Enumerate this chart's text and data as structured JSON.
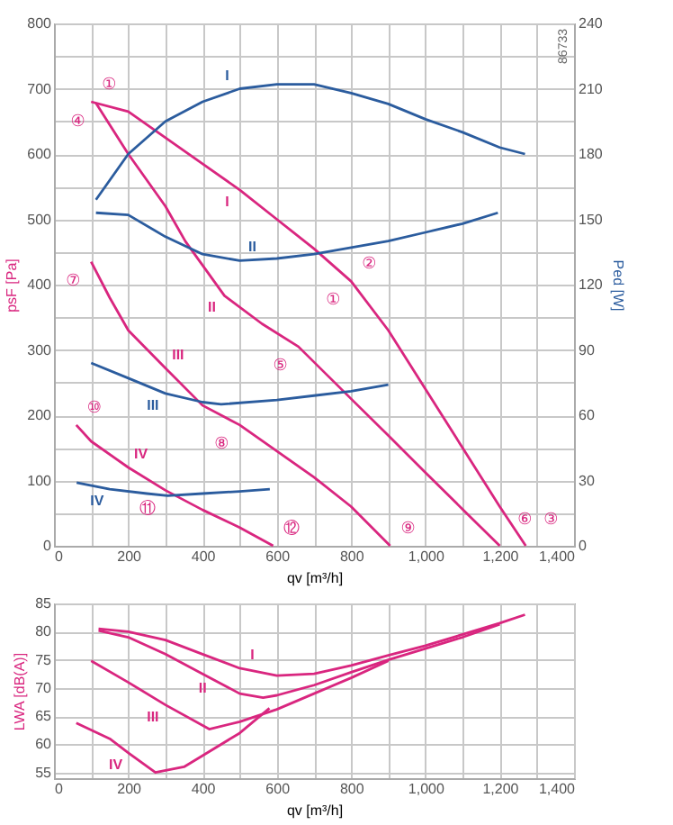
{
  "chart_data": [
    {
      "type": "line",
      "xlabel": "qv [m³/h]",
      "ylabel": "psF [Pa]",
      "y2label": "Ped [W]",
      "grid": true,
      "line_style": "solid",
      "marker": "none",
      "xlim": [
        0,
        1400
      ],
      "xticks": [
        0,
        {
          "value": 100,
          "label": null
        },
        200,
        {
          "value": 300,
          "label": null
        },
        400,
        {
          "value": 500,
          "label": null
        },
        600,
        {
          "value": 700,
          "label": null
        },
        800,
        {
          "value": 900,
          "label": null
        },
        {
          "value": 1000,
          "label": "1,000"
        },
        {
          "value": 1100,
          "label": null
        },
        {
          "value": 1200,
          "label": "1,200"
        },
        {
          "value": 1300,
          "label": null
        },
        {
          "value": 1400,
          "label": "1,400"
        }
      ],
      "ylim": [
        0,
        800
      ],
      "yticks": [
        0,
        {
          "value": 50,
          "label": null
        },
        100,
        {
          "value": 150,
          "label": null
        },
        200,
        {
          "value": 250,
          "label": null
        },
        300,
        {
          "value": 350,
          "label": null
        },
        400,
        {
          "value": 450,
          "label": null
        },
        500,
        {
          "value": 550,
          "label": null
        },
        600,
        {
          "value": 650,
          "label": null
        },
        700,
        {
          "value": 750,
          "label": null
        },
        800
      ],
      "y2lim": [
        0,
        240
      ],
      "y2ticks": [
        0,
        30,
        60,
        90,
        120,
        150,
        180,
        210,
        240
      ],
      "series": [
        {
          "name": "I",
          "color": "#d9267f",
          "x": [
            100,
            200,
            300,
            400,
            500,
            600,
            700,
            800,
            900,
            1000,
            1100,
            1200,
            1270
          ],
          "values": [
            680,
            665,
            625,
            585,
            545,
            500,
            455,
            405,
            330,
            240,
            150,
            60,
            0
          ]
        },
        {
          "name": "II",
          "color": "#d9267f",
          "x": [
            113,
            200,
            300,
            354,
            459,
            560,
            658,
            800,
            900,
            1000,
            1100,
            1200
          ],
          "values": [
            678,
            600,
            520,
            466,
            383,
            340,
            305,
            225,
            169,
            112,
            56,
            0
          ]
        },
        {
          "name": "III",
          "color": "#d9267f",
          "x": [
            100,
            150,
            200,
            300,
            400,
            500,
            600,
            700,
            800,
            905
          ],
          "values": [
            435,
            380,
            330,
            272,
            215,
            185,
            145,
            105,
            60,
            0
          ]
        },
        {
          "name": "IV",
          "color": "#d9267f",
          "x": [
            60,
            100,
            200,
            300,
            400,
            500,
            590
          ],
          "values": [
            185,
            160,
            120,
            85,
            55,
            28,
            0
          ]
        },
        {
          "name": "I",
          "color": "#2b5c9e",
          "axis": "y2",
          "x": [
            113,
            200,
            300,
            400,
            500,
            600,
            700,
            800,
            900,
            1000,
            1100,
            1200,
            1268
          ],
          "values": [
            159,
            180,
            195,
            204,
            210,
            212,
            212,
            208,
            203,
            196,
            190,
            183,
            180
          ]
        },
        {
          "name": "II",
          "color": "#2b5c9e",
          "axis": "y2",
          "x": [
            113,
            200,
            300,
            400,
            500,
            600,
            700,
            800,
            900,
            1000,
            1100,
            1195
          ],
          "values": [
            153,
            152,
            142,
            134,
            131,
            132,
            134,
            137,
            140,
            144,
            148,
            153
          ]
        },
        {
          "name": "III",
          "color": "#2b5c9e",
          "axis": "y2",
          "x": [
            100,
            200,
            300,
            400,
            450,
            600,
            700,
            800,
            900
          ],
          "values": [
            84,
            77,
            70,
            66,
            65,
            67,
            69,
            71,
            74
          ]
        },
        {
          "name": "IV",
          "color": "#2b5c9e",
          "axis": "y2",
          "x": [
            61,
            150,
            250,
            306,
            400,
            500,
            581
          ],
          "values": [
            29,
            26,
            24,
            23,
            24,
            25,
            26
          ]
        }
      ],
      "annotations": [
        "86733",
        {
          "text": "④",
          "x": 113,
          "y": 678
        },
        {
          "text": "①",
          "x": 100,
          "y": 680
        },
        {
          "text": "⑦",
          "x": 100,
          "y": 435
        },
        {
          "text": "⑩",
          "x": 60,
          "y": 185
        },
        {
          "text": "①",
          "x": 800,
          "y": 405
        },
        {
          "text": "②",
          "x": 800,
          "y": 405
        },
        {
          "text": "⑤",
          "x": 658,
          "y": 305
        },
        {
          "text": "⑧",
          "x": 500,
          "y": 185
        },
        {
          "text": "⑪",
          "x": 300,
          "y": 85
        },
        {
          "text": "⑫",
          "x": 590,
          "y": 0
        },
        {
          "text": "⑨",
          "x": 905,
          "y": 0
        },
        {
          "text": "⑥",
          "x": 1200,
          "y": 0
        },
        {
          "text": "③",
          "x": 1270,
          "y": 0
        }
      ]
    },
    {
      "type": "line",
      "xlabel": "qv [m³/h]",
      "ylabel": "LWA [dB(A)]",
      "grid": true,
      "line_style": "solid",
      "marker": "none",
      "xlim": [
        0,
        1400
      ],
      "xticks": [
        0,
        {
          "value": 100,
          "label": null
        },
        200,
        {
          "value": 300,
          "label": null
        },
        400,
        {
          "value": 500,
          "label": null
        },
        600,
        {
          "value": 700,
          "label": null
        },
        800,
        {
          "value": 900,
          "label": null
        },
        {
          "value": 1000,
          "label": "1,000"
        },
        {
          "value": 1100,
          "label": null
        },
        {
          "value": 1200,
          "label": "1,200"
        },
        {
          "value": 1300,
          "label": null
        },
        {
          "value": 1400,
          "label": "1,400"
        }
      ],
      "ylim": [
        54,
        85
      ],
      "yticks": [
        55,
        60,
        65,
        70,
        75,
        80,
        85
      ],
      "series": [
        {
          "name": "I",
          "color": "#d9267f",
          "x": [
            120,
            200,
            300,
            400,
            500,
            600,
            700,
            800,
            900,
            1000,
            1100,
            1200,
            1268
          ],
          "values": [
            80.5,
            80,
            78.5,
            76,
            73.5,
            72.2,
            72.5,
            74,
            75.8,
            77.5,
            79.5,
            81.5,
            83
          ]
        },
        {
          "name": "II",
          "color": "#d9267f",
          "x": [
            120,
            200,
            300,
            400,
            500,
            563,
            600,
            700,
            800,
            900,
            1000,
            1100,
            1200
          ],
          "values": [
            80.2,
            79,
            76,
            72.5,
            69,
            68.3,
            68.7,
            70.5,
            72.8,
            75,
            77,
            79,
            81.3
          ]
        },
        {
          "name": "III",
          "color": "#d9267f",
          "x": [
            100,
            200,
            300,
            418,
            500,
            600,
            700,
            800,
            900
          ],
          "values": [
            74.8,
            71,
            67,
            62.7,
            64,
            66.2,
            69,
            71.8,
            74.8
          ]
        },
        {
          "name": "IV",
          "color": "#d9267f",
          "x": [
            60,
            150,
            200,
            273,
            350,
            400,
            500,
            580
          ],
          "values": [
            63.8,
            61,
            58.5,
            55,
            56,
            58,
            62,
            66.4
          ]
        }
      ]
    }
  ]
}
